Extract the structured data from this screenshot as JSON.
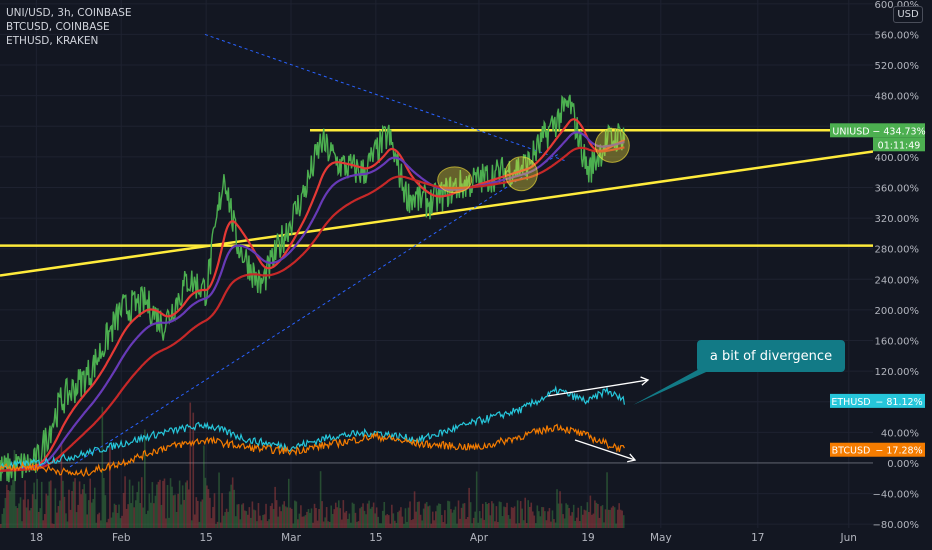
{
  "legend": {
    "line1": "UNI/USD, 3h, COINBASE",
    "line2": "BTCUSD, COINBASE",
    "line3": "ETHUSD, KRAKEN"
  },
  "currency_badge": "USD",
  "annotation_text": "a bit of divergence",
  "colors": {
    "background": "#131722",
    "grid": "#1e2230",
    "uni": "#4caf50",
    "ema_fast": "#e53935",
    "ema_slow": "#673ab7",
    "ema_long": "#c62828",
    "eth": "#26c6da",
    "btc": "#f57c00",
    "trendline": "#ffeb3b",
    "annotation": "#127a86"
  },
  "chart_data": {
    "type": "line",
    "title": "UNI/USD, 3h, COINBASE",
    "y_unit": "%",
    "ylim": [
      -85,
      605
    ],
    "y_ticks": [
      -80,
      -40,
      0,
      40,
      80,
      120,
      160,
      200,
      240,
      280,
      320,
      360,
      400,
      440,
      480,
      520,
      560,
      600
    ],
    "y_tick_labels": [
      "−80.00%",
      "−40.00%",
      "0.00%",
      "40.00%",
      "80.00%",
      "120.00%",
      "160.00%",
      "200.00%",
      "240.00%",
      "280.00%",
      "320.00%",
      "360.00%",
      "400.00%",
      "440.00%",
      "480.00%",
      "520.00%",
      "560.00%",
      "600.00%"
    ],
    "x_ticks": [
      "18",
      "Feb",
      "15",
      "Mar",
      "15",
      "Apr",
      "19",
      "May",
      "17",
      "Jun"
    ],
    "x_tick_dates": [
      "2021-01-18",
      "2021-02-01",
      "2021-02-15",
      "2021-03-01",
      "2021-03-15",
      "2021-04-01",
      "2021-04-19",
      "2021-05-01",
      "2021-05-17",
      "2021-06-01"
    ],
    "x_range": [
      "2021-01-12",
      "2021-06-05"
    ],
    "grid": true,
    "series": [
      {
        "name": "UNIUSD",
        "role": "main",
        "x": [
          "2021-01-12",
          "2021-01-18",
          "2021-01-22",
          "2021-01-27",
          "2021-02-01",
          "2021-02-05",
          "2021-02-08",
          "2021-02-12",
          "2021-02-15",
          "2021-02-18",
          "2021-02-20",
          "2021-02-24",
          "2021-02-28",
          "2021-03-03",
          "2021-03-06",
          "2021-03-09",
          "2021-03-13",
          "2021-03-17",
          "2021-03-20",
          "2021-03-24",
          "2021-03-28",
          "2021-04-01",
          "2021-04-05",
          "2021-04-09",
          "2021-04-13",
          "2021-04-16",
          "2021-04-19",
          "2021-04-22",
          "2021-04-25"
        ],
        "y": [
          -10,
          0,
          80,
          120,
          200,
          210,
          180,
          240,
          225,
          380,
          290,
          230,
          300,
          350,
          420,
          390,
          380,
          430,
          350,
          340,
          360,
          370,
          380,
          390,
          440,
          470,
          380,
          420,
          430
        ]
      },
      {
        "name": "ETHUSD",
        "role": "secondary",
        "x": [
          "2021-01-12",
          "2021-01-18",
          "2021-01-25",
          "2021-02-01",
          "2021-02-08",
          "2021-02-15",
          "2021-02-22",
          "2021-03-01",
          "2021-03-08",
          "2021-03-15",
          "2021-03-22",
          "2021-04-01",
          "2021-04-08",
          "2021-04-14",
          "2021-04-19",
          "2021-04-22",
          "2021-04-25"
        ],
        "y": [
          -5,
          0,
          10,
          25,
          40,
          50,
          30,
          20,
          35,
          40,
          30,
          55,
          70,
          95,
          80,
          95,
          81.12
        ]
      },
      {
        "name": "BTCUSD",
        "role": "secondary",
        "x": [
          "2021-01-12",
          "2021-01-18",
          "2021-01-25",
          "2021-02-01",
          "2021-02-08",
          "2021-02-15",
          "2021-02-22",
          "2021-03-01",
          "2021-03-08",
          "2021-03-15",
          "2021-03-22",
          "2021-04-01",
          "2021-04-08",
          "2021-04-14",
          "2021-04-19",
          "2021-04-22",
          "2021-04-25"
        ],
        "y": [
          -5,
          -5,
          -15,
          0,
          20,
          30,
          20,
          15,
          25,
          35,
          25,
          20,
          35,
          48,
          35,
          25,
          17.28
        ]
      }
    ],
    "labels": {
      "uni_price": "434.73%",
      "uni_countdown": "01:11:49",
      "eth_value": "81.12%",
      "btc_value": "17.28%"
    }
  }
}
